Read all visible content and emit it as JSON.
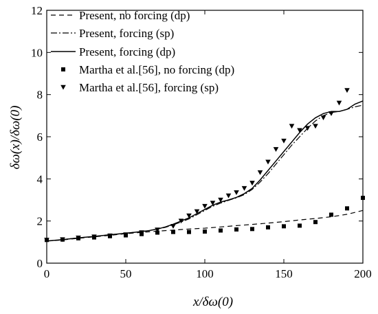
{
  "chart_data": {
    "type": "line",
    "xlabel": "x/δω(0)",
    "ylabel": "δω(x)/δω(0)",
    "xlim": [
      0,
      200
    ],
    "ylim": [
      0,
      12
    ],
    "xticks": [
      0,
      50,
      100,
      150,
      200
    ],
    "yticks": [
      0,
      2,
      4,
      6,
      8,
      10,
      12
    ],
    "x_tick_labels": [
      "0",
      "50",
      "100",
      "150",
      "200"
    ],
    "y_tick_labels": [
      "0",
      "2",
      "4",
      "6",
      "8",
      "10",
      "12"
    ],
    "grid": false,
    "legend_position": "top-left",
    "series": [
      {
        "name": "Present, no forcing (dp)",
        "style": "dashed",
        "points": [
          [
            0,
            1.05
          ],
          [
            10,
            1.1
          ],
          [
            20,
            1.18
          ],
          [
            30,
            1.25
          ],
          [
            40,
            1.32
          ],
          [
            50,
            1.4
          ],
          [
            60,
            1.46
          ],
          [
            70,
            1.52
          ],
          [
            80,
            1.57
          ],
          [
            90,
            1.62
          ],
          [
            100,
            1.66
          ],
          [
            110,
            1.72
          ],
          [
            120,
            1.78
          ],
          [
            130,
            1.84
          ],
          [
            140,
            1.9
          ],
          [
            150,
            1.97
          ],
          [
            160,
            2.05
          ],
          [
            170,
            2.12
          ],
          [
            180,
            2.2
          ],
          [
            190,
            2.32
          ],
          [
            200,
            2.5
          ]
        ]
      },
      {
        "name": "Present, forcing (sp)",
        "style": "dashdot",
        "points": [
          [
            0,
            1.05
          ],
          [
            10,
            1.12
          ],
          [
            20,
            1.2
          ],
          [
            30,
            1.27
          ],
          [
            40,
            1.35
          ],
          [
            50,
            1.42
          ],
          [
            60,
            1.5
          ],
          [
            65,
            1.55
          ],
          [
            70,
            1.62
          ],
          [
            75,
            1.7
          ],
          [
            80,
            1.82
          ],
          [
            85,
            1.95
          ],
          [
            90,
            2.1
          ],
          [
            95,
            2.3
          ],
          [
            100,
            2.5
          ],
          [
            105,
            2.7
          ],
          [
            110,
            2.85
          ],
          [
            115,
            2.98
          ],
          [
            120,
            3.1
          ],
          [
            125,
            3.25
          ],
          [
            130,
            3.5
          ],
          [
            135,
            3.85
          ],
          [
            140,
            4.25
          ],
          [
            145,
            4.7
          ],
          [
            150,
            5.15
          ],
          [
            155,
            5.6
          ],
          [
            160,
            6.0
          ],
          [
            165,
            6.4
          ],
          [
            170,
            6.75
          ],
          [
            175,
            7.0
          ],
          [
            180,
            7.15
          ],
          [
            185,
            7.2
          ],
          [
            190,
            7.3
          ],
          [
            195,
            7.42
          ],
          [
            200,
            7.5
          ]
        ]
      },
      {
        "name": "Present, forcing (dp)",
        "style": "solid",
        "points": [
          [
            0,
            1.05
          ],
          [
            10,
            1.12
          ],
          [
            20,
            1.2
          ],
          [
            30,
            1.27
          ],
          [
            40,
            1.35
          ],
          [
            50,
            1.42
          ],
          [
            60,
            1.5
          ],
          [
            65,
            1.55
          ],
          [
            70,
            1.62
          ],
          [
            75,
            1.72
          ],
          [
            80,
            1.85
          ],
          [
            85,
            2.0
          ],
          [
            90,
            2.15
          ],
          [
            95,
            2.35
          ],
          [
            100,
            2.55
          ],
          [
            105,
            2.75
          ],
          [
            110,
            2.9
          ],
          [
            115,
            3.0
          ],
          [
            120,
            3.12
          ],
          [
            125,
            3.3
          ],
          [
            130,
            3.55
          ],
          [
            135,
            3.95
          ],
          [
            140,
            4.4
          ],
          [
            145,
            4.85
          ],
          [
            150,
            5.3
          ],
          [
            155,
            5.75
          ],
          [
            160,
            6.2
          ],
          [
            165,
            6.6
          ],
          [
            170,
            6.9
          ],
          [
            175,
            7.1
          ],
          [
            180,
            7.2
          ],
          [
            185,
            7.2
          ],
          [
            190,
            7.3
          ],
          [
            195,
            7.55
          ],
          [
            200,
            7.7
          ]
        ]
      },
      {
        "name": "Martha et al.[56], no forcing (dp)",
        "style": "square",
        "points": [
          [
            0,
            1.1
          ],
          [
            10,
            1.12
          ],
          [
            20,
            1.18
          ],
          [
            30,
            1.22
          ],
          [
            40,
            1.28
          ],
          [
            50,
            1.32
          ],
          [
            60,
            1.38
          ],
          [
            70,
            1.45
          ],
          [
            80,
            1.48
          ],
          [
            90,
            1.48
          ],
          [
            100,
            1.5
          ],
          [
            110,
            1.55
          ],
          [
            120,
            1.6
          ],
          [
            130,
            1.62
          ],
          [
            140,
            1.7
          ],
          [
            150,
            1.75
          ],
          [
            160,
            1.78
          ],
          [
            170,
            1.95
          ],
          [
            180,
            2.3
          ],
          [
            190,
            2.6
          ],
          [
            200,
            3.1
          ]
        ]
      },
      {
        "name": "Martha et al.[56], forcing (sp)",
        "style": "triangle",
        "points": [
          [
            0,
            1.1
          ],
          [
            10,
            1.12
          ],
          [
            20,
            1.2
          ],
          [
            30,
            1.25
          ],
          [
            40,
            1.3
          ],
          [
            50,
            1.35
          ],
          [
            60,
            1.45
          ],
          [
            70,
            1.58
          ],
          [
            80,
            1.75
          ],
          [
            85,
            2.0
          ],
          [
            90,
            2.25
          ],
          [
            95,
            2.45
          ],
          [
            100,
            2.7
          ],
          [
            105,
            2.85
          ],
          [
            110,
            3.0
          ],
          [
            115,
            3.2
          ],
          [
            120,
            3.35
          ],
          [
            125,
            3.55
          ],
          [
            130,
            3.8
          ],
          [
            135,
            4.3
          ],
          [
            140,
            4.8
          ],
          [
            145,
            5.4
          ],
          [
            150,
            5.8
          ],
          [
            155,
            6.5
          ],
          [
            160,
            6.3
          ],
          [
            165,
            6.4
          ],
          [
            170,
            6.5
          ],
          [
            175,
            6.9
          ],
          [
            180,
            7.1
          ],
          [
            185,
            7.6
          ],
          [
            190,
            8.2
          ]
        ]
      }
    ]
  }
}
